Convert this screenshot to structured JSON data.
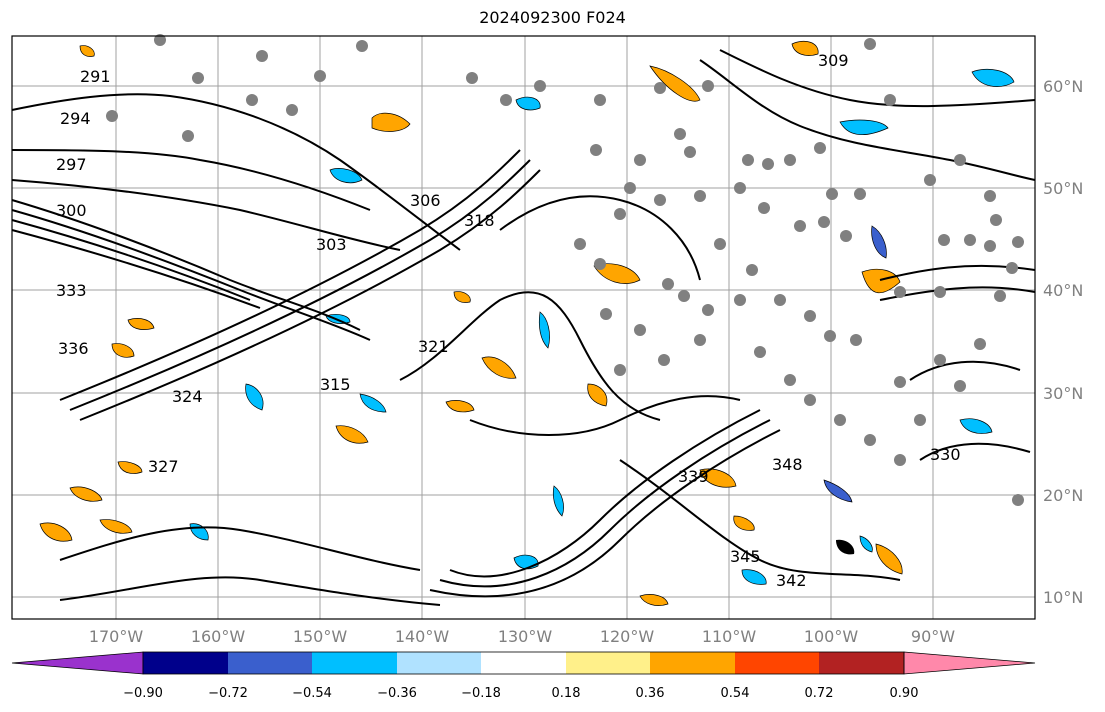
{
  "title": "2024092300 F024",
  "lon_ticks": [
    "170°W",
    "160°W",
    "150°W",
    "140°W",
    "130°W",
    "120°W",
    "110°W",
    "100°W",
    "90°W"
  ],
  "lat_ticks": [
    "60°N",
    "50°N",
    "40°N",
    "30°N",
    "20°N",
    "10°N"
  ],
  "colorbar": {
    "labels": [
      "−0.90",
      "−0.72",
      "−0.54",
      "−0.36",
      "−0.18",
      "0.18",
      "0.36",
      "0.54",
      "0.72",
      "0.90"
    ],
    "colors": [
      "#9a32cd",
      "#00008b",
      "#3a5fcd",
      "#00bfff",
      "#b0e2ff",
      "#ffffff",
      "#fff08a",
      "#ffa500",
      "#ff4500",
      "#b22222",
      "#ff88aa"
    ]
  },
  "contour_labels": [
    "291",
    "294",
    "297",
    "300",
    "303",
    "306",
    "309",
    "318",
    "321",
    "324",
    "327",
    "330",
    "333",
    "336",
    "339",
    "342",
    "345",
    "348",
    "315"
  ],
  "colors": {
    "contour": "#000000",
    "station_dot": "#808080",
    "grid": "#a0a0a0",
    "border": "#000000"
  }
}
